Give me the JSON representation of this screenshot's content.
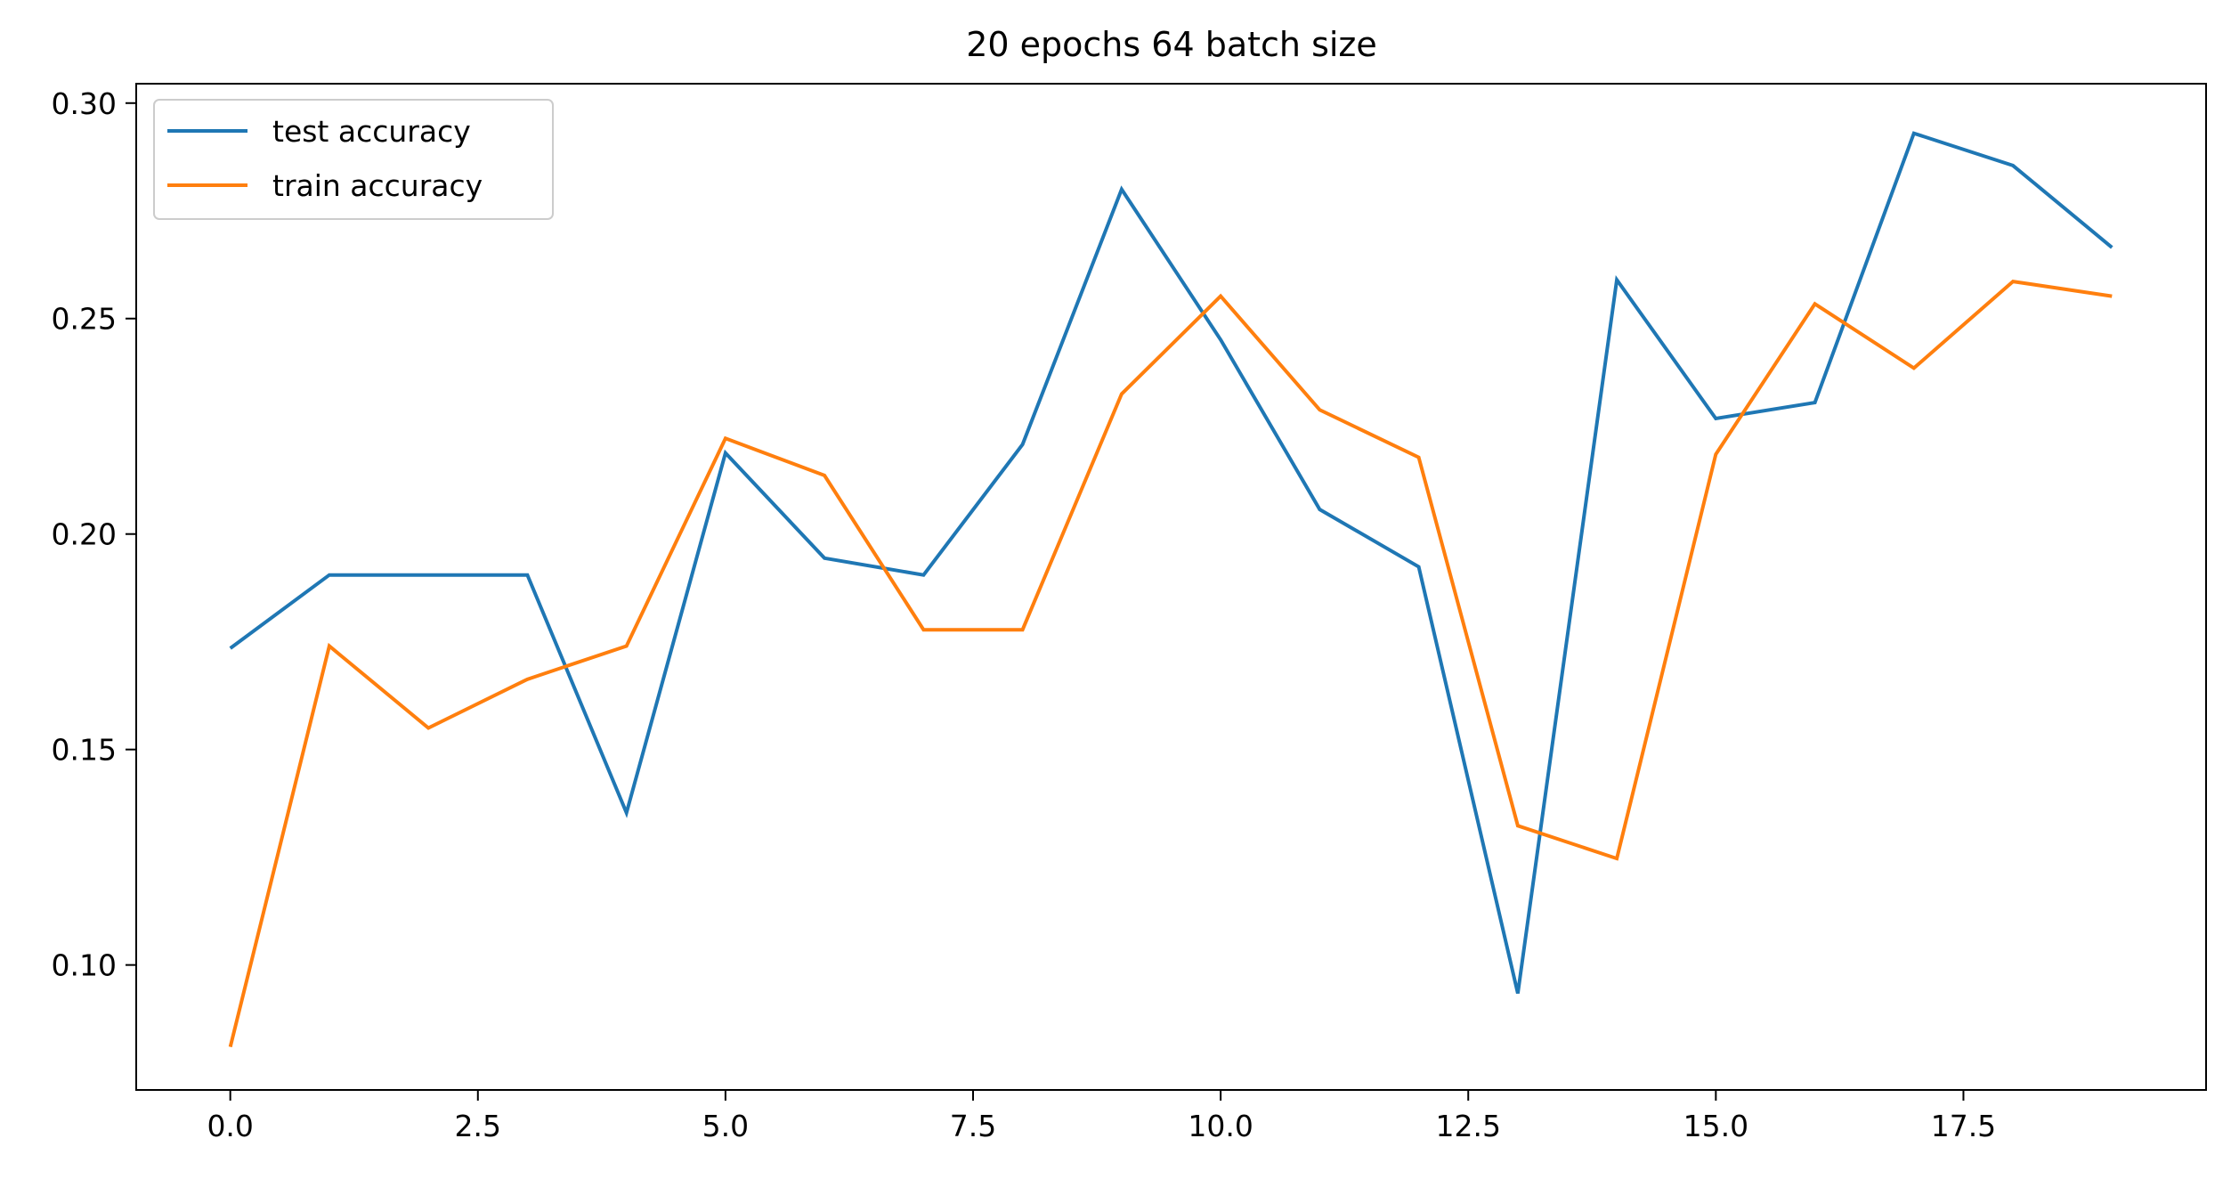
{
  "chart_data": {
    "type": "line",
    "title": "20 epochs 64 batch size",
    "xlabel": "",
    "ylabel": "",
    "x": [
      0,
      1,
      2,
      3,
      4,
      5,
      6,
      7,
      8,
      9,
      10,
      11,
      12,
      13,
      14,
      15,
      16,
      17,
      18,
      19
    ],
    "xlim": [
      -0.95,
      19.95
    ],
    "ylim": [
      0.071,
      0.3045
    ],
    "xticks": [
      0.0,
      2.5,
      5.0,
      7.5,
      10.0,
      12.5,
      15.0,
      17.5
    ],
    "xtick_labels": [
      "0.0",
      "2.5",
      "5.0",
      "7.5",
      "10.0",
      "12.5",
      "15.0",
      "17.5"
    ],
    "yticks": [
      0.1,
      0.15,
      0.2,
      0.25,
      0.3
    ],
    "ytick_labels": [
      "0.10",
      "0.15",
      "0.20",
      "0.25",
      "0.30"
    ],
    "grid": false,
    "legend_position": "top-left",
    "series": [
      {
        "name": "test accuracy",
        "color": "#1f77b4",
        "values": [
          0.1735,
          0.1905,
          0.1905,
          0.1905,
          0.1353,
          0.2188,
          0.1944,
          0.1905,
          0.2208,
          0.28,
          0.2451,
          0.2057,
          0.1924,
          0.0934,
          0.259,
          0.2268,
          0.2305,
          0.293,
          0.2855,
          0.2665
        ]
      },
      {
        "name": "train accuracy",
        "color": "#ff7f0e",
        "values": [
          0.081,
          0.174,
          0.155,
          0.1663,
          0.174,
          0.2222,
          0.2136,
          0.1778,
          0.1778,
          0.2325,
          0.2552,
          0.2288,
          0.2178,
          0.1323,
          0.1247,
          0.2185,
          0.2534,
          0.2385,
          0.2586,
          0.2552
        ]
      }
    ]
  }
}
